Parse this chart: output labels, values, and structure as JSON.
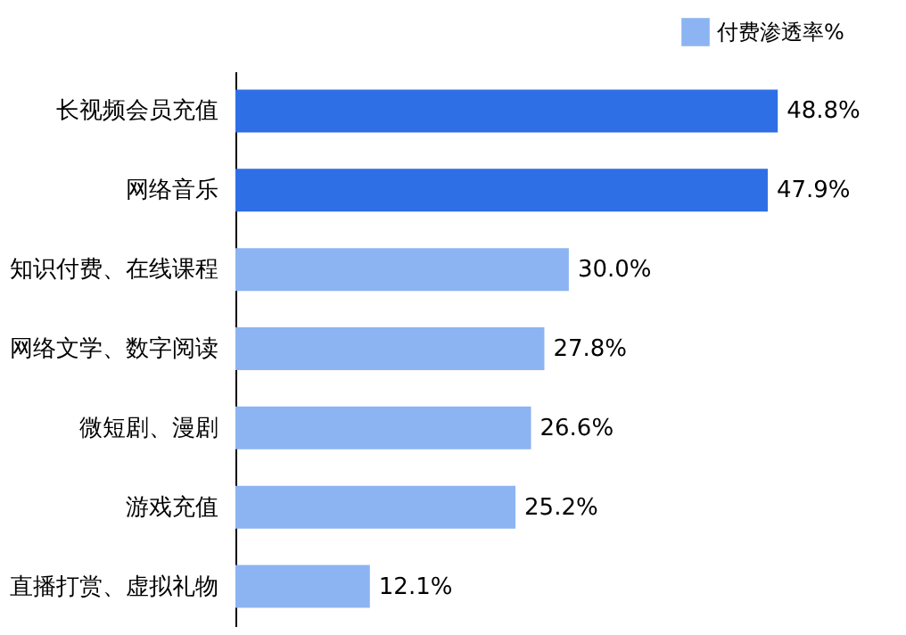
{
  "chart_data": {
    "type": "bar",
    "orientation": "horizontal",
    "categories": [
      "长视频会员充值",
      "网络音乐",
      "知识付费、在线课程",
      "网络文学、数字阅读",
      "微短剧、漫剧",
      "游戏充值",
      "直播打赏、虚拟礼物"
    ],
    "series": [
      {
        "name": "付费渗透率%",
        "color": "#8db4f2",
        "colors": [
          "#2e6fe6",
          "#2e6fe6",
          "#8db4f2",
          "#8db4f2",
          "#8db4f2",
          "#8db4f2",
          "#8db4f2"
        ],
        "values": [
          48.8,
          47.9,
          30.0,
          27.8,
          26.6,
          25.2,
          12.1
        ],
        "value_labels": [
          "48.8%",
          "47.9%",
          "30.0%",
          "27.8%",
          "26.6%",
          "25.2%",
          "12.1%"
        ]
      }
    ],
    "legend": "top right"
  }
}
